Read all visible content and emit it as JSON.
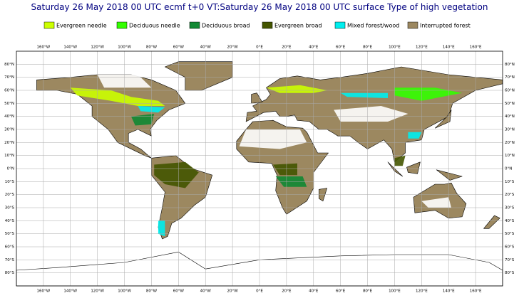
{
  "header": {
    "title": "Saturday 26 May 2018 00 UTC ecmf t+0 VT:Saturday 26 May 2018 00 UTC surface  Type of high vegetation"
  },
  "legend": [
    {
      "label": "Evergreen needle",
      "color": "#ccff00"
    },
    {
      "label": "Deciduous needle",
      "color": "#33ff00"
    },
    {
      "label": "Deciduous broad",
      "color": "#118833"
    },
    {
      "label": "Evergreen broad",
      "color": "#445500"
    },
    {
      "label": "Mixed forest/wood",
      "color": "#00eeee"
    },
    {
      "label": "Interrupted forest",
      "color": "#9c8860"
    }
  ],
  "lon_labels": [
    "160°W",
    "140°W",
    "120°W",
    "100°W",
    "80°W",
    "60°W",
    "40°W",
    "20°W",
    "0°E",
    "20°E",
    "40°E",
    "60°E",
    "80°E",
    "100°E",
    "120°E",
    "140°E",
    "160°E"
  ],
  "lat_labels": [
    "80°N",
    "70°N",
    "60°N",
    "50°N",
    "40°N",
    "30°N",
    "20°N",
    "10°N",
    "0°N",
    "10°S",
    "20°S",
    "30°S",
    "40°S",
    "50°S",
    "60°S",
    "70°S",
    "80°S"
  ]
}
